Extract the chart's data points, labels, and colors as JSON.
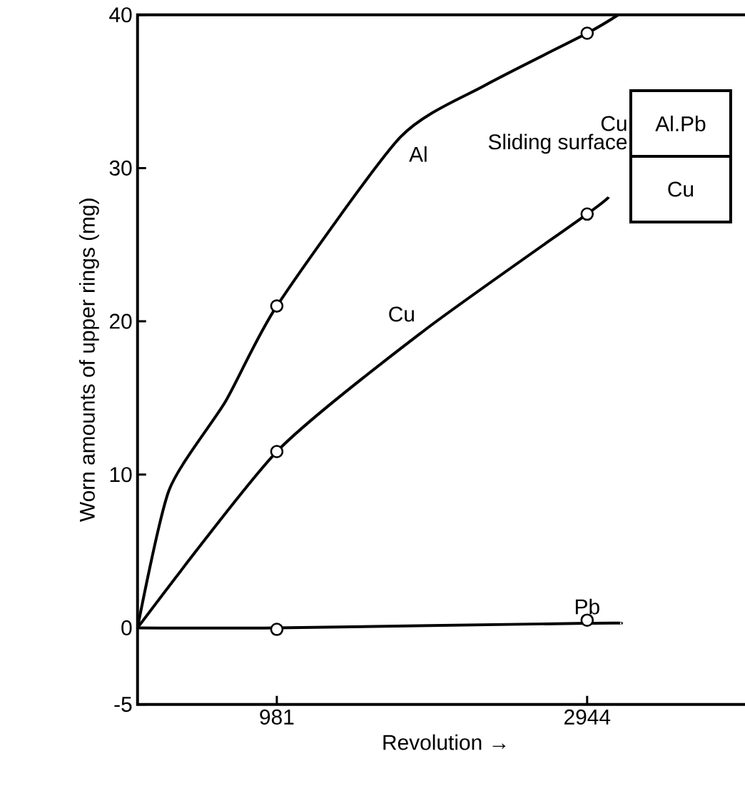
{
  "chart_data": {
    "type": "line",
    "xlabel": "Revolution →",
    "ylabel": "Worn amounts of upper rings (mg)",
    "xlim": [
      100,
      4000
    ],
    "ylim": [
      -5,
      40
    ],
    "xticks": [
      981,
      2944
    ],
    "yticks": [
      -5,
      0,
      10,
      20,
      30,
      40
    ],
    "marker": "none",
    "line_style": "solid",
    "series": [
      {
        "name": "Al",
        "color": "#000000",
        "x": [
          100,
          300,
          658,
          981,
          1761,
          2298,
          2944,
          3141
        ],
        "values": [
          0,
          9,
          14.8,
          21,
          32,
          35.4,
          38.8,
          40
        ]
      },
      {
        "name": "Cu",
        "color": "#000000",
        "x": [
          100,
          981,
          1913,
          2944,
          3080
        ],
        "values": [
          0,
          11.5,
          19.4,
          27,
          28.1
        ]
      },
      {
        "name": "Pb",
        "color": "#000000",
        "x": [
          100,
          981,
          2944,
          3160
        ],
        "values": [
          0,
          0,
          0.3,
          0.3
        ]
      },
      {
        "type": "scatter",
        "marker": "circle",
        "color": "#000000",
        "x": [
          981,
          2944,
          981,
          2944,
          981,
          2944
        ],
        "values": [
          21,
          38.8,
          11.5,
          27,
          -0.1,
          0.5
        ]
      }
    ],
    "annotations": [
      "Cu",
      "Al.Pb",
      "Sliding surface",
      "Cu"
    ]
  }
}
